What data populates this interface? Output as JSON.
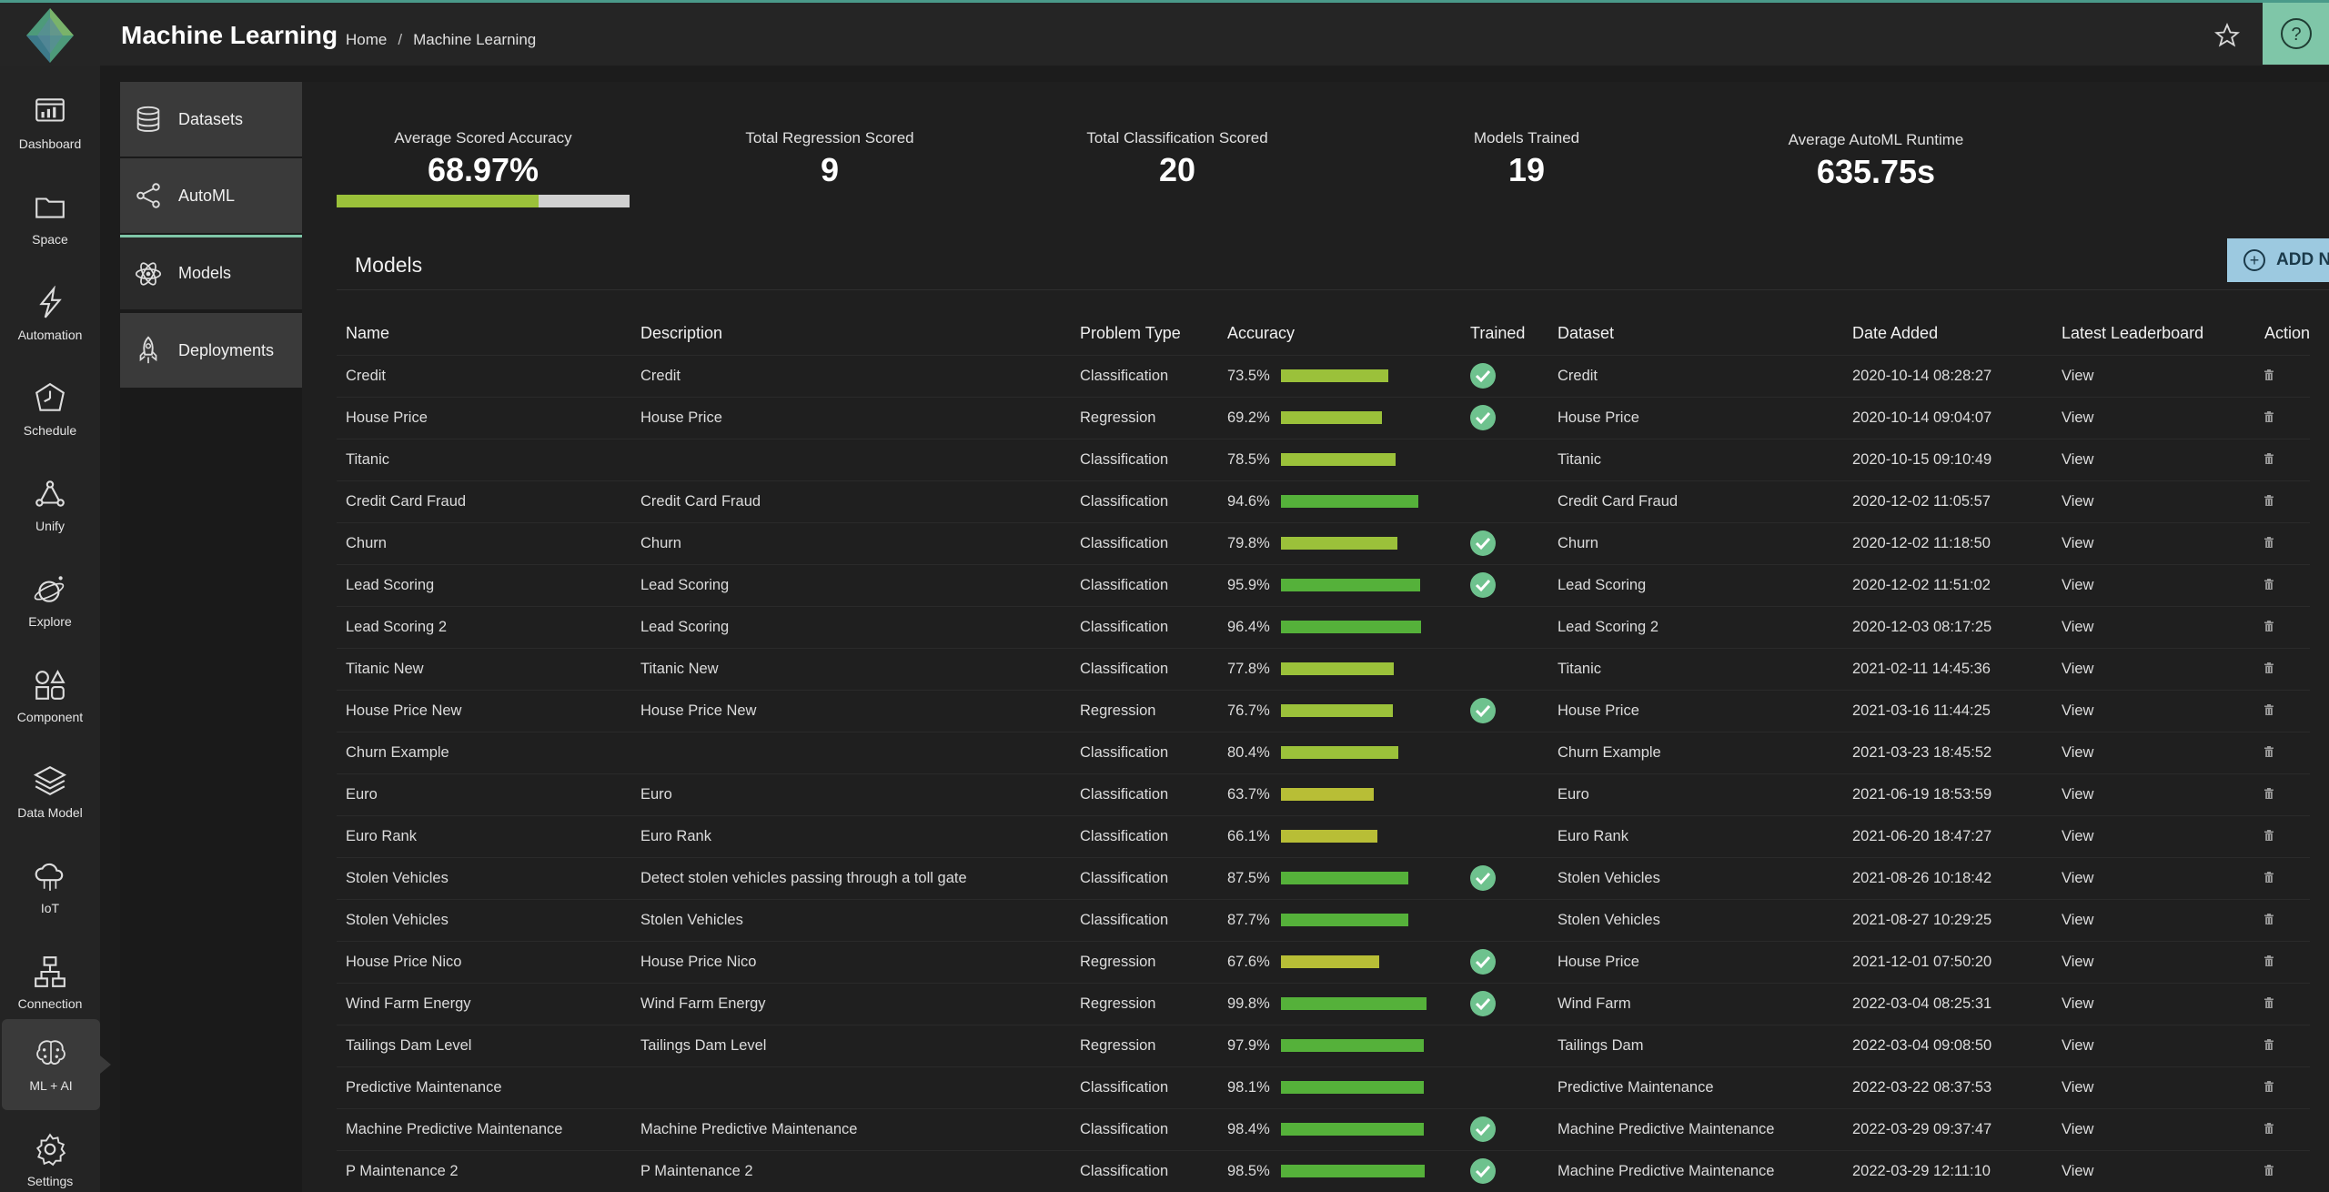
{
  "app": {
    "title": "Machine Learning"
  },
  "breadcrumb": {
    "home": "Home",
    "separator": "/",
    "current": "Machine Learning"
  },
  "leftnav": [
    {
      "label": "Dashboard",
      "icon": "dashboard-icon"
    },
    {
      "label": "Space",
      "icon": "folder-icon"
    },
    {
      "label": "Automation",
      "icon": "lightning-icon"
    },
    {
      "label": "Schedule",
      "icon": "clock-icon"
    },
    {
      "label": "Unify",
      "icon": "network-icon"
    },
    {
      "label": "Explore",
      "icon": "planet-icon"
    },
    {
      "label": "Component",
      "icon": "shapes-icon"
    },
    {
      "label": "Data Model",
      "icon": "layers-icon"
    },
    {
      "label": "IoT",
      "icon": "cloud-icon"
    },
    {
      "label": "Connection",
      "icon": "connection-icon"
    },
    {
      "label": "ML + AI",
      "icon": "brain-icon",
      "active": true
    },
    {
      "label": "Settings",
      "icon": "gear-icon"
    }
  ],
  "subnav": [
    {
      "label": "Datasets",
      "icon": "database-icon"
    },
    {
      "label": "AutoML",
      "icon": "share-icon"
    },
    {
      "label": "Models",
      "icon": "atom-icon",
      "active": true
    },
    {
      "label": "Deployments",
      "icon": "rocket-icon"
    }
  ],
  "stats": {
    "avg_accuracy": {
      "title": "Average Scored Accuracy",
      "value": "68.97%",
      "fraction": 0.6897
    },
    "regression": {
      "title": "Total Regression Scored",
      "value": "9"
    },
    "classification": {
      "title": "Total Classification Scored",
      "value": "20"
    },
    "trained": {
      "title": "Models Trained",
      "value": "19"
    },
    "runtime": {
      "title": "Average AutoML Runtime",
      "value": "635.75s"
    }
  },
  "models": {
    "title": "Models",
    "add_label": "ADD N",
    "columns": [
      "Name",
      "Description",
      "Problem Type",
      "Accuracy",
      "Trained",
      "Dataset",
      "Date Added",
      "Latest Leaderboard",
      "Action"
    ],
    "rows": [
      {
        "name": "Credit",
        "description": "Credit",
        "type": "Classification",
        "accuracy": "73.5%",
        "acc": 73.5,
        "trained": true,
        "dataset": "Credit",
        "date": "2020-10-14 08:28:27",
        "view": "View"
      },
      {
        "name": "House Price",
        "description": "House Price",
        "type": "Regression",
        "accuracy": "69.2%",
        "acc": 69.2,
        "trained": true,
        "dataset": "House Price",
        "date": "2020-10-14 09:04:07",
        "view": "View"
      },
      {
        "name": "Titanic",
        "description": "",
        "type": "Classification",
        "accuracy": "78.5%",
        "acc": 78.5,
        "trained": false,
        "dataset": "Titanic",
        "date": "2020-10-15 09:10:49",
        "view": "View"
      },
      {
        "name": "Credit Card Fraud",
        "description": "Credit Card Fraud",
        "type": "Classification",
        "accuracy": "94.6%",
        "acc": 94.6,
        "trained": false,
        "dataset": "Credit Card Fraud",
        "date": "2020-12-02 11:05:57",
        "view": "View"
      },
      {
        "name": "Churn",
        "description": "Churn",
        "type": "Classification",
        "accuracy": "79.8%",
        "acc": 79.8,
        "trained": true,
        "dataset": "Churn",
        "date": "2020-12-02 11:18:50",
        "view": "View"
      },
      {
        "name": "Lead Scoring",
        "description": "Lead Scoring",
        "type": "Classification",
        "accuracy": "95.9%",
        "acc": 95.9,
        "trained": true,
        "dataset": "Lead Scoring",
        "date": "2020-12-02 11:51:02",
        "view": "View"
      },
      {
        "name": "Lead Scoring 2",
        "description": "Lead Scoring",
        "type": "Classification",
        "accuracy": "96.4%",
        "acc": 96.4,
        "trained": false,
        "dataset": "Lead Scoring 2",
        "date": "2020-12-03 08:17:25",
        "view": "View"
      },
      {
        "name": "Titanic New",
        "description": "Titanic New",
        "type": "Classification",
        "accuracy": "77.8%",
        "acc": 77.8,
        "trained": false,
        "dataset": "Titanic",
        "date": "2021-02-11 14:45:36",
        "view": "View"
      },
      {
        "name": "House Price New",
        "description": "House Price New",
        "type": "Regression",
        "accuracy": "76.7%",
        "acc": 76.7,
        "trained": true,
        "dataset": "House Price",
        "date": "2021-03-16 11:44:25",
        "view": "View"
      },
      {
        "name": "Churn Example",
        "description": "",
        "type": "Classification",
        "accuracy": "80.4%",
        "acc": 80.4,
        "trained": false,
        "dataset": "Churn Example",
        "date": "2021-03-23 18:45:52",
        "view": "View"
      },
      {
        "name": "Euro",
        "description": "Euro",
        "type": "Classification",
        "accuracy": "63.7%",
        "acc": 63.7,
        "trained": false,
        "dataset": "Euro",
        "date": "2021-06-19 18:53:59",
        "view": "View"
      },
      {
        "name": "Euro Rank",
        "description": "Euro Rank",
        "type": "Classification",
        "accuracy": "66.1%",
        "acc": 66.1,
        "trained": false,
        "dataset": "Euro Rank",
        "date": "2021-06-20 18:47:27",
        "view": "View"
      },
      {
        "name": "Stolen Vehicles",
        "description": "Detect stolen vehicles passing through a toll gate",
        "type": "Classification",
        "accuracy": "87.5%",
        "acc": 87.5,
        "trained": true,
        "dataset": "Stolen Vehicles",
        "date": "2021-08-26 10:18:42",
        "view": "View"
      },
      {
        "name": "Stolen Vehicles",
        "description": "Stolen Vehicles",
        "type": "Classification",
        "accuracy": "87.7%",
        "acc": 87.7,
        "trained": false,
        "dataset": "Stolen Vehicles",
        "date": "2021-08-27 10:29:25",
        "view": "View"
      },
      {
        "name": "House Price Nico",
        "description": "House Price Nico",
        "type": "Regression",
        "accuracy": "67.6%",
        "acc": 67.6,
        "trained": true,
        "dataset": "House Price",
        "date": "2021-12-01 07:50:20",
        "view": "View"
      },
      {
        "name": "Wind Farm Energy",
        "description": "Wind Farm Energy",
        "type": "Regression",
        "accuracy": "99.8%",
        "acc": 99.8,
        "trained": true,
        "dataset": "Wind Farm",
        "date": "2022-03-04 08:25:31",
        "view": "View"
      },
      {
        "name": "Tailings Dam Level",
        "description": "Tailings Dam Level",
        "type": "Regression",
        "accuracy": "97.9%",
        "acc": 97.9,
        "trained": false,
        "dataset": "Tailings Dam",
        "date": "2022-03-04 09:08:50",
        "view": "View"
      },
      {
        "name": "Predictive Maintenance",
        "description": "",
        "type": "Classification",
        "accuracy": "98.1%",
        "acc": 98.1,
        "trained": false,
        "dataset": "Predictive Maintenance",
        "date": "2022-03-22 08:37:53",
        "view": "View"
      },
      {
        "name": "Machine Predictive Maintenance",
        "description": "Machine Predictive Maintenance",
        "type": "Classification",
        "accuracy": "98.4%",
        "acc": 98.4,
        "trained": true,
        "dataset": "Machine Predictive Maintenance",
        "date": "2022-03-29 09:37:47",
        "view": "View"
      },
      {
        "name": "P Maintenance 2",
        "description": "P Maintenance 2",
        "type": "Classification",
        "accuracy": "98.5%",
        "acc": 98.5,
        "trained": true,
        "dataset": "Machine Predictive Maintenance",
        "date": "2022-03-29 12:11:10",
        "view": "View"
      }
    ]
  },
  "colors": {
    "accent": "#7fc6a8",
    "bar_high": "#55b13a",
    "bar_mid": "#9bc13a",
    "bar_low": "#b8be36",
    "check": "#6ec28e"
  }
}
